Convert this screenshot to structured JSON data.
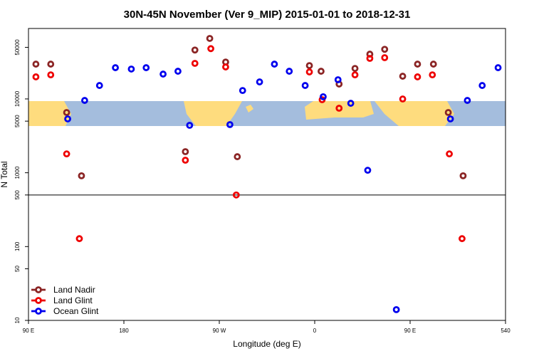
{
  "chart_data": {
    "type": "scatter",
    "title": "30N-45N November (Ver 9_MIP)   2015-01-01 to 2018-12-31",
    "xlabel": "Longitude (deg E)",
    "ylabel": "N Total",
    "xlim": [
      90,
      540
    ],
    "xticks": [
      {
        "value": 90,
        "label": "90 E"
      },
      180,
      {
        "value": 270,
        "label": "90 W"
      },
      {
        "value": 360,
        "label": "0"
      },
      {
        "value": 450,
        "label": "90 E"
      },
      540
    ],
    "ylim": [
      10,
      90000
    ],
    "yticks": [
      10,
      50,
      100,
      500,
      1000,
      5000,
      10000,
      50000
    ],
    "yscale": "log",
    "hline": 500,
    "legend": "lower left",
    "series": [
      {
        "name": "Land Nadir",
        "color": "#8b2525",
        "x": [
          97,
          111,
          126,
          140,
          238,
          247,
          261,
          276,
          287,
          355,
          366,
          383,
          398,
          412,
          426,
          443,
          457,
          472,
          486,
          500
        ],
        "values": [
          29600,
          29600,
          6550,
          910,
          1930,
          46000,
          66000,
          31600,
          1650,
          28300,
          23700,
          15900,
          25900,
          40400,
          47000,
          20300,
          29600,
          29600,
          6550,
          910
        ]
      },
      {
        "name": "Land Glint",
        "color": "#ee0000",
        "x": [
          97,
          111,
          126,
          138,
          238,
          247,
          262,
          276,
          286,
          355,
          367,
          383,
          398,
          412,
          426,
          443,
          457,
          471,
          487,
          499
        ],
        "values": [
          19900,
          21200,
          1800,
          128,
          1480,
          30300,
          48000,
          27100,
          500,
          23200,
          9760,
          7480,
          21200,
          35400,
          36200,
          9980,
          19900,
          21200,
          1800,
          128
        ]
      },
      {
        "name": "Ocean Glint",
        "color": "#0000ee",
        "x": [
          127,
          143,
          157,
          172,
          187,
          201,
          217,
          231,
          242,
          280,
          292,
          308,
          322,
          336,
          351,
          368,
          382,
          394,
          410,
          437,
          488,
          504,
          518,
          533
        ],
        "values": [
          5360,
          9540,
          15200,
          26500,
          25400,
          26500,
          21700,
          23700,
          4390,
          4490,
          13000,
          17000,
          29600,
          23700,
          15200,
          10700,
          18200,
          8730,
          1080,
          14,
          5360,
          9540,
          15200,
          26500
        ]
      }
    ]
  }
}
